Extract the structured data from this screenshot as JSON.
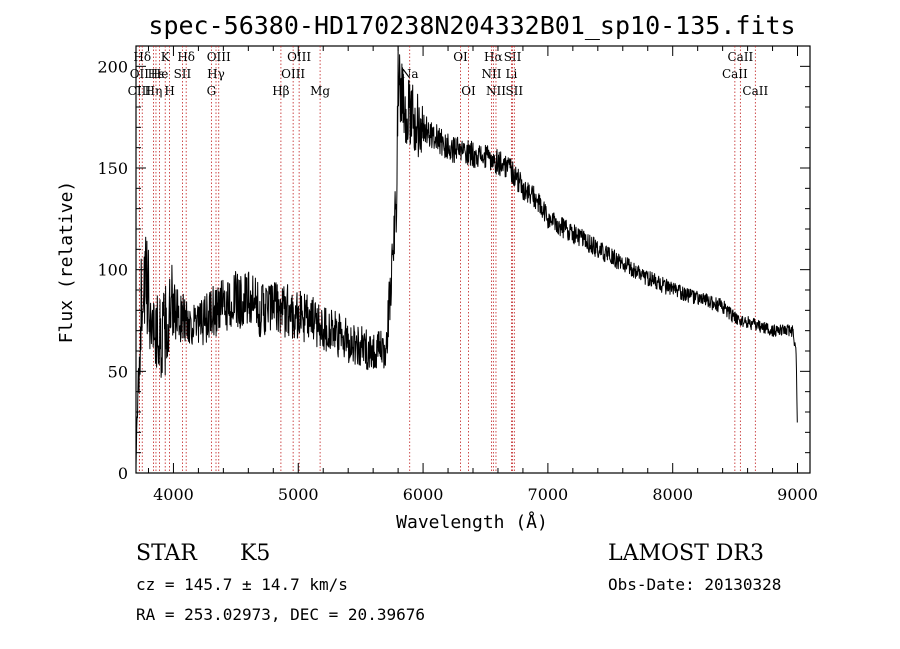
{
  "chart_data": {
    "type": "line",
    "title": "spec-56380-HD170238N204332B01_sp10-135.fits",
    "xlabel": "Wavelength (Å)",
    "ylabel": "Flux (relative)",
    "xlim": [
      3700,
      9100
    ],
    "ylim": [
      0,
      210
    ],
    "x_ticks": [
      4000,
      5000,
      6000,
      7000,
      8000,
      9000
    ],
    "y_ticks": [
      0,
      50,
      100,
      150,
      200
    ],
    "grid": false,
    "series": [
      {
        "name": "flux",
        "noise_amplitude": 0.12,
        "x": [
          3700,
          3720,
          3740,
          3760,
          3780,
          3800,
          3830,
          3860,
          3900,
          3950,
          4000,
          4100,
          4200,
          4300,
          4400,
          4500,
          4600,
          4700,
          4800,
          4900,
          5000,
          5100,
          5200,
          5300,
          5400,
          5500,
          5600,
          5700,
          5740,
          5770,
          5790,
          5800,
          5820,
          5850,
          5900,
          6000,
          6100,
          6200,
          6300,
          6400,
          6500,
          6600,
          6700,
          6800,
          6900,
          7000,
          7200,
          7400,
          7600,
          7800,
          8000,
          8200,
          8400,
          8500,
          8600,
          8700,
          8800,
          8900,
          8960,
          8990,
          9000
        ],
        "y": [
          5,
          45,
          80,
          100,
          90,
          85,
          75,
          70,
          65,
          72,
          80,
          75,
          72,
          78,
          82,
          85,
          85,
          80,
          82,
          80,
          78,
          75,
          72,
          68,
          65,
          62,
          60,
          60,
          90,
          115,
          150,
          200,
          190,
          180,
          175,
          170,
          165,
          160,
          158,
          157,
          155,
          153,
          150,
          140,
          135,
          125,
          118,
          110,
          103,
          96,
          90,
          86,
          82,
          76,
          74,
          72,
          70,
          70,
          70,
          60,
          15
        ]
      }
    ],
    "line_markers": [
      {
        "label": "Hδ",
        "x": 3750,
        "row": 1
      },
      {
        "label": "OII",
        "x": 3727,
        "row": 2
      },
      {
        "label": "CIII",
        "x": 3727,
        "row": 3
      },
      {
        "label": "Hε",
        "x": 3860,
        "row": 2
      },
      {
        "label": "Hη",
        "x": 3840,
        "row": 3
      },
      {
        "label": "K",
        "x": 3934,
        "row": 1
      },
      {
        "label": "He",
        "x": 3889,
        "row": 2
      },
      {
        "label": "H",
        "x": 3969,
        "row": 3
      },
      {
        "label": "SII",
        "x": 4072,
        "row": 2
      },
      {
        "label": "Hδ",
        "x": 4102,
        "row": 1
      },
      {
        "label": "OIII",
        "x": 4363,
        "row": 1
      },
      {
        "label": "Hγ",
        "x": 4341,
        "row": 2
      },
      {
        "label": "G",
        "x": 4304,
        "row": 3
      },
      {
        "label": "Hβ",
        "x": 4861,
        "row": 3
      },
      {
        "label": "OIII",
        "x": 5007,
        "row": 1
      },
      {
        "label": "OIII",
        "x": 4959,
        "row": 2
      },
      {
        "label": "Mg",
        "x": 5175,
        "row": 3
      },
      {
        "label": "Na",
        "x": 5893,
        "row": 2
      },
      {
        "label": "OI",
        "x": 6300,
        "row": 1
      },
      {
        "label": "OI",
        "x": 6364,
        "row": 3
      },
      {
        "label": "Hα",
        "x": 6563,
        "row": 1
      },
      {
        "label": "NII",
        "x": 6548,
        "row": 2
      },
      {
        "label": "NII",
        "x": 6584,
        "row": 3
      },
      {
        "label": "SII",
        "x": 6717,
        "row": 1
      },
      {
        "label": "Li",
        "x": 6708,
        "row": 2
      },
      {
        "label": "SII",
        "x": 6731,
        "row": 3
      },
      {
        "label": "CaII",
        "x": 8542,
        "row": 1
      },
      {
        "label": "CaII",
        "x": 8498,
        "row": 2
      },
      {
        "label": "CaII",
        "x": 8662,
        "row": 3
      }
    ]
  },
  "info": {
    "object_class": "STAR",
    "subclass": "K5",
    "survey": "LAMOST DR3",
    "redshift_text": "cz = 145.7 ± 14.7 km/s",
    "obs_date_text": "Obs-Date: 20130328",
    "coords_text": "RA = 253.02973, DEC =  20.39676"
  },
  "colors": {
    "line": "#000000",
    "marker": "#c02020",
    "axis": "#000000",
    "background": "#ffffff"
  }
}
